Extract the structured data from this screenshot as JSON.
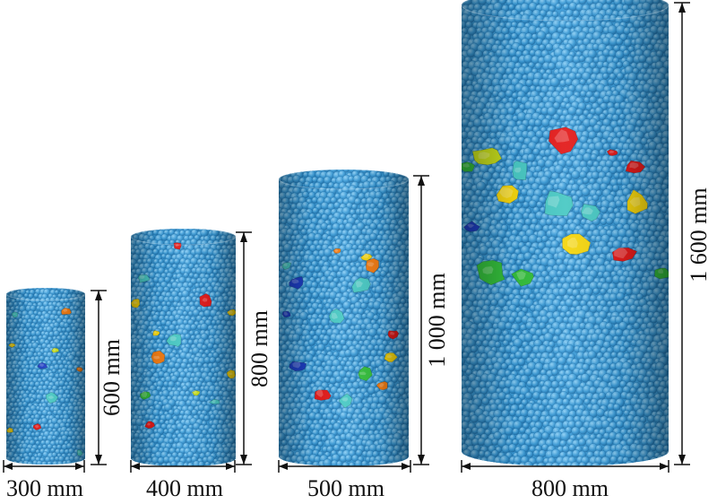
{
  "colors": {
    "matrix": "#3a9ad6",
    "matrix_shade": "#1e6fa8",
    "matrix_light": "#8fd0f5",
    "dimension_line": "#111111",
    "aggregate_palette": [
      "#e31b1b",
      "#f07c14",
      "#f5d60f",
      "#c8df1c",
      "#35c03d",
      "#49c9c4",
      "#1e3fc4"
    ]
  },
  "specimens": [
    {
      "id": "s300",
      "diameter_label": "300 mm",
      "height_label": "600 mm",
      "aggregates": [
        {
          "c": 1,
          "u": 0.76,
          "v": 0.1,
          "s": 0.85
        },
        {
          "c": 3,
          "u": 0.62,
          "v": 0.33,
          "s": 0.6
        },
        {
          "c": 6,
          "u": 0.46,
          "v": 0.42,
          "s": 0.9
        },
        {
          "c": 5,
          "u": 0.58,
          "v": 0.61,
          "s": 1.0
        },
        {
          "c": 0,
          "u": 0.4,
          "v": 0.78,
          "s": 0.75
        },
        {
          "c": 1,
          "u": 0.93,
          "v": 0.44,
          "s": 0.5
        },
        {
          "c": 2,
          "u": 0.07,
          "v": 0.3,
          "s": 0.55
        },
        {
          "c": 5,
          "u": 0.11,
          "v": 0.12,
          "s": 0.5
        },
        {
          "c": 5,
          "u": 0.93,
          "v": 0.93,
          "s": 0.5
        },
        {
          "c": 2,
          "u": 0.05,
          "v": 0.8,
          "s": 0.5
        }
      ]
    },
    {
      "id": "s400",
      "diameter_label": "400 mm",
      "height_label": "800 mm",
      "aggregates": [
        {
          "c": 0,
          "u": 0.45,
          "v": 0.04,
          "s": 0.55
        },
        {
          "c": 5,
          "u": 0.12,
          "v": 0.18,
          "s": 0.8
        },
        {
          "c": 0,
          "u": 0.72,
          "v": 0.28,
          "s": 0.85
        },
        {
          "c": 5,
          "u": 0.42,
          "v": 0.45,
          "s": 1.0
        },
        {
          "c": 1,
          "u": 0.26,
          "v": 0.53,
          "s": 0.85
        },
        {
          "c": 4,
          "u": 0.14,
          "v": 0.69,
          "s": 0.75
        },
        {
          "c": 0,
          "u": 0.18,
          "v": 0.82,
          "s": 0.55
        },
        {
          "c": 5,
          "u": 0.8,
          "v": 0.72,
          "s": 0.6
        },
        {
          "c": 3,
          "u": 0.62,
          "v": 0.68,
          "s": 0.5
        },
        {
          "c": 2,
          "u": 0.96,
          "v": 0.6,
          "s": 0.55
        },
        {
          "c": 2,
          "u": 0.05,
          "v": 0.29,
          "s": 0.55
        },
        {
          "c": 2,
          "u": 0.96,
          "v": 0.33,
          "s": 0.6
        },
        {
          "c": 2,
          "u": 0.24,
          "v": 0.42,
          "s": 0.45
        }
      ]
    },
    {
      "id": "s500",
      "diameter_label": "500 mm",
      "height_label": "1 000 mm",
      "aggregates": [
        {
          "c": 1,
          "u": 0.72,
          "v": 0.3,
          "s": 0.85
        },
        {
          "c": 2,
          "u": 0.68,
          "v": 0.27,
          "s": 0.6
        },
        {
          "c": 5,
          "u": 0.63,
          "v": 0.37,
          "s": 0.9
        },
        {
          "c": 6,
          "u": 0.14,
          "v": 0.36,
          "s": 0.8
        },
        {
          "c": 5,
          "u": 0.44,
          "v": 0.48,
          "s": 0.8
        },
        {
          "c": 0,
          "u": 0.88,
          "v": 0.54,
          "s": 0.55
        },
        {
          "c": 2,
          "u": 0.86,
          "v": 0.62,
          "s": 0.6
        },
        {
          "c": 4,
          "u": 0.66,
          "v": 0.68,
          "s": 0.8
        },
        {
          "c": 6,
          "u": 0.15,
          "v": 0.65,
          "s": 0.85
        },
        {
          "c": 0,
          "u": 0.33,
          "v": 0.75,
          "s": 0.85
        },
        {
          "c": 5,
          "u": 0.52,
          "v": 0.77,
          "s": 0.7
        },
        {
          "c": 1,
          "u": 0.8,
          "v": 0.72,
          "s": 0.55
        },
        {
          "c": 1,
          "u": 0.45,
          "v": 0.25,
          "s": 0.4
        },
        {
          "c": 6,
          "u": 0.06,
          "v": 0.47,
          "s": 0.45
        },
        {
          "c": 5,
          "u": 0.06,
          "v": 0.3,
          "s": 0.45
        }
      ]
    },
    {
      "id": "s800",
      "diameter_label": "800 mm",
      "height_label": "1 600 mm",
      "aggregates": [
        {
          "c": 0,
          "u": 0.5,
          "v": 0.29,
          "s": 1.0
        },
        {
          "c": 3,
          "u": 0.12,
          "v": 0.33,
          "s": 0.9
        },
        {
          "c": 0,
          "u": 0.84,
          "v": 0.35,
          "s": 0.7
        },
        {
          "c": 5,
          "u": 0.28,
          "v": 0.36,
          "s": 0.6
        },
        {
          "c": 2,
          "u": 0.23,
          "v": 0.41,
          "s": 0.85
        },
        {
          "c": 5,
          "u": 0.46,
          "v": 0.43,
          "s": 0.95
        },
        {
          "c": 5,
          "u": 0.62,
          "v": 0.45,
          "s": 0.75
        },
        {
          "c": 2,
          "u": 0.85,
          "v": 0.43,
          "s": 0.8
        },
        {
          "c": 2,
          "u": 0.55,
          "v": 0.52,
          "s": 0.85
        },
        {
          "c": 0,
          "u": 0.78,
          "v": 0.54,
          "s": 0.9
        },
        {
          "c": 4,
          "u": 0.14,
          "v": 0.58,
          "s": 0.85
        },
        {
          "c": 4,
          "u": 0.3,
          "v": 0.59,
          "s": 0.75
        },
        {
          "c": 4,
          "u": 0.97,
          "v": 0.58,
          "s": 0.5
        },
        {
          "c": 4,
          "u": 0.03,
          "v": 0.35,
          "s": 0.5
        },
        {
          "c": 6,
          "u": 0.05,
          "v": 0.48,
          "s": 0.45
        },
        {
          "c": 0,
          "u": 0.73,
          "v": 0.32,
          "s": 0.35
        }
      ]
    }
  ]
}
